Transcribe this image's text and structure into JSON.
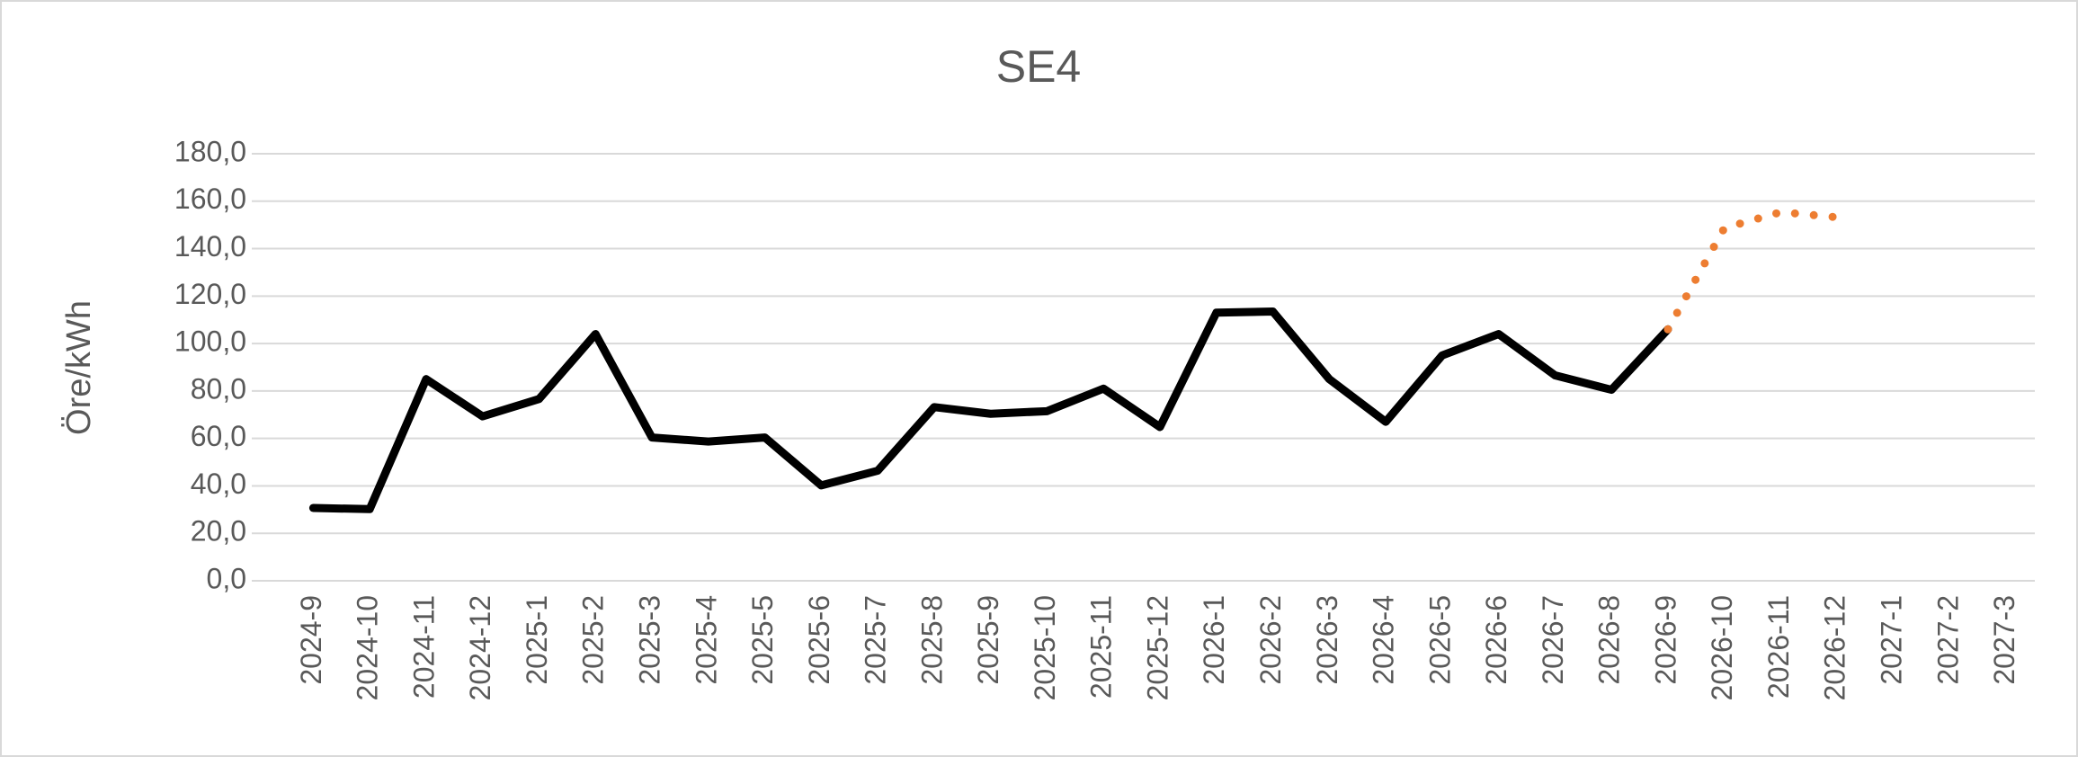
{
  "chart_data": {
    "type": "line",
    "title": "SE4",
    "y_label": "Öre/kWh",
    "categories": [
      "2024-9",
      "2024-10",
      "2024-11",
      "2024-12",
      "2025-1",
      "2025-2",
      "2025-3",
      "2025-4",
      "2025-5",
      "2025-6",
      "2025-7",
      "2025-8",
      "2025-9",
      "2025-10",
      "2025-11",
      "2025-12",
      "2026-1",
      "2026-2",
      "2026-3",
      "2026-4",
      "2026-5",
      "2026-6",
      "2026-7",
      "2026-8",
      "2026-9",
      "2026-10",
      "2026-11",
      "2026-12",
      "2027-1",
      "2027-2",
      "2027-3"
    ],
    "series": [
      {
        "color": "#000000",
        "dash": "solid",
        "values": [
          30.7,
          30.2,
          85,
          69.3,
          76.6,
          104,
          60.4,
          58.7,
          60.4,
          40.2,
          46.4,
          73.2,
          70.4,
          71.5,
          81,
          64.8,
          113,
          113.5,
          85,
          67,
          95,
          104,
          86.6,
          80.5,
          106,
          null,
          null,
          null,
          null,
          null,
          null
        ]
      },
      {
        "color": "#ed7d31",
        "dash": "dotted",
        "values": [
          null,
          null,
          null,
          null,
          null,
          null,
          null,
          null,
          null,
          null,
          null,
          null,
          null,
          null,
          null,
          null,
          null,
          null,
          null,
          null,
          null,
          null,
          null,
          null,
          106,
          148.7,
          155.4,
          153.2,
          null,
          null,
          null
        ]
      }
    ],
    "ylim": [
      0,
      180
    ],
    "yticks": [
      {
        "value": 0,
        "label": "0,0"
      },
      {
        "value": 20,
        "label": "20,0"
      },
      {
        "value": 40,
        "label": "40,0"
      },
      {
        "value": 60,
        "label": "60,0"
      },
      {
        "value": 80,
        "label": "80,0"
      },
      {
        "value": 100,
        "label": "100,0"
      },
      {
        "value": 120,
        "label": "120,0"
      },
      {
        "value": 140,
        "label": "140,0"
      },
      {
        "value": 160,
        "label": "160,0"
      },
      {
        "value": 180,
        "label": "180,0"
      }
    ],
    "grid": true
  }
}
